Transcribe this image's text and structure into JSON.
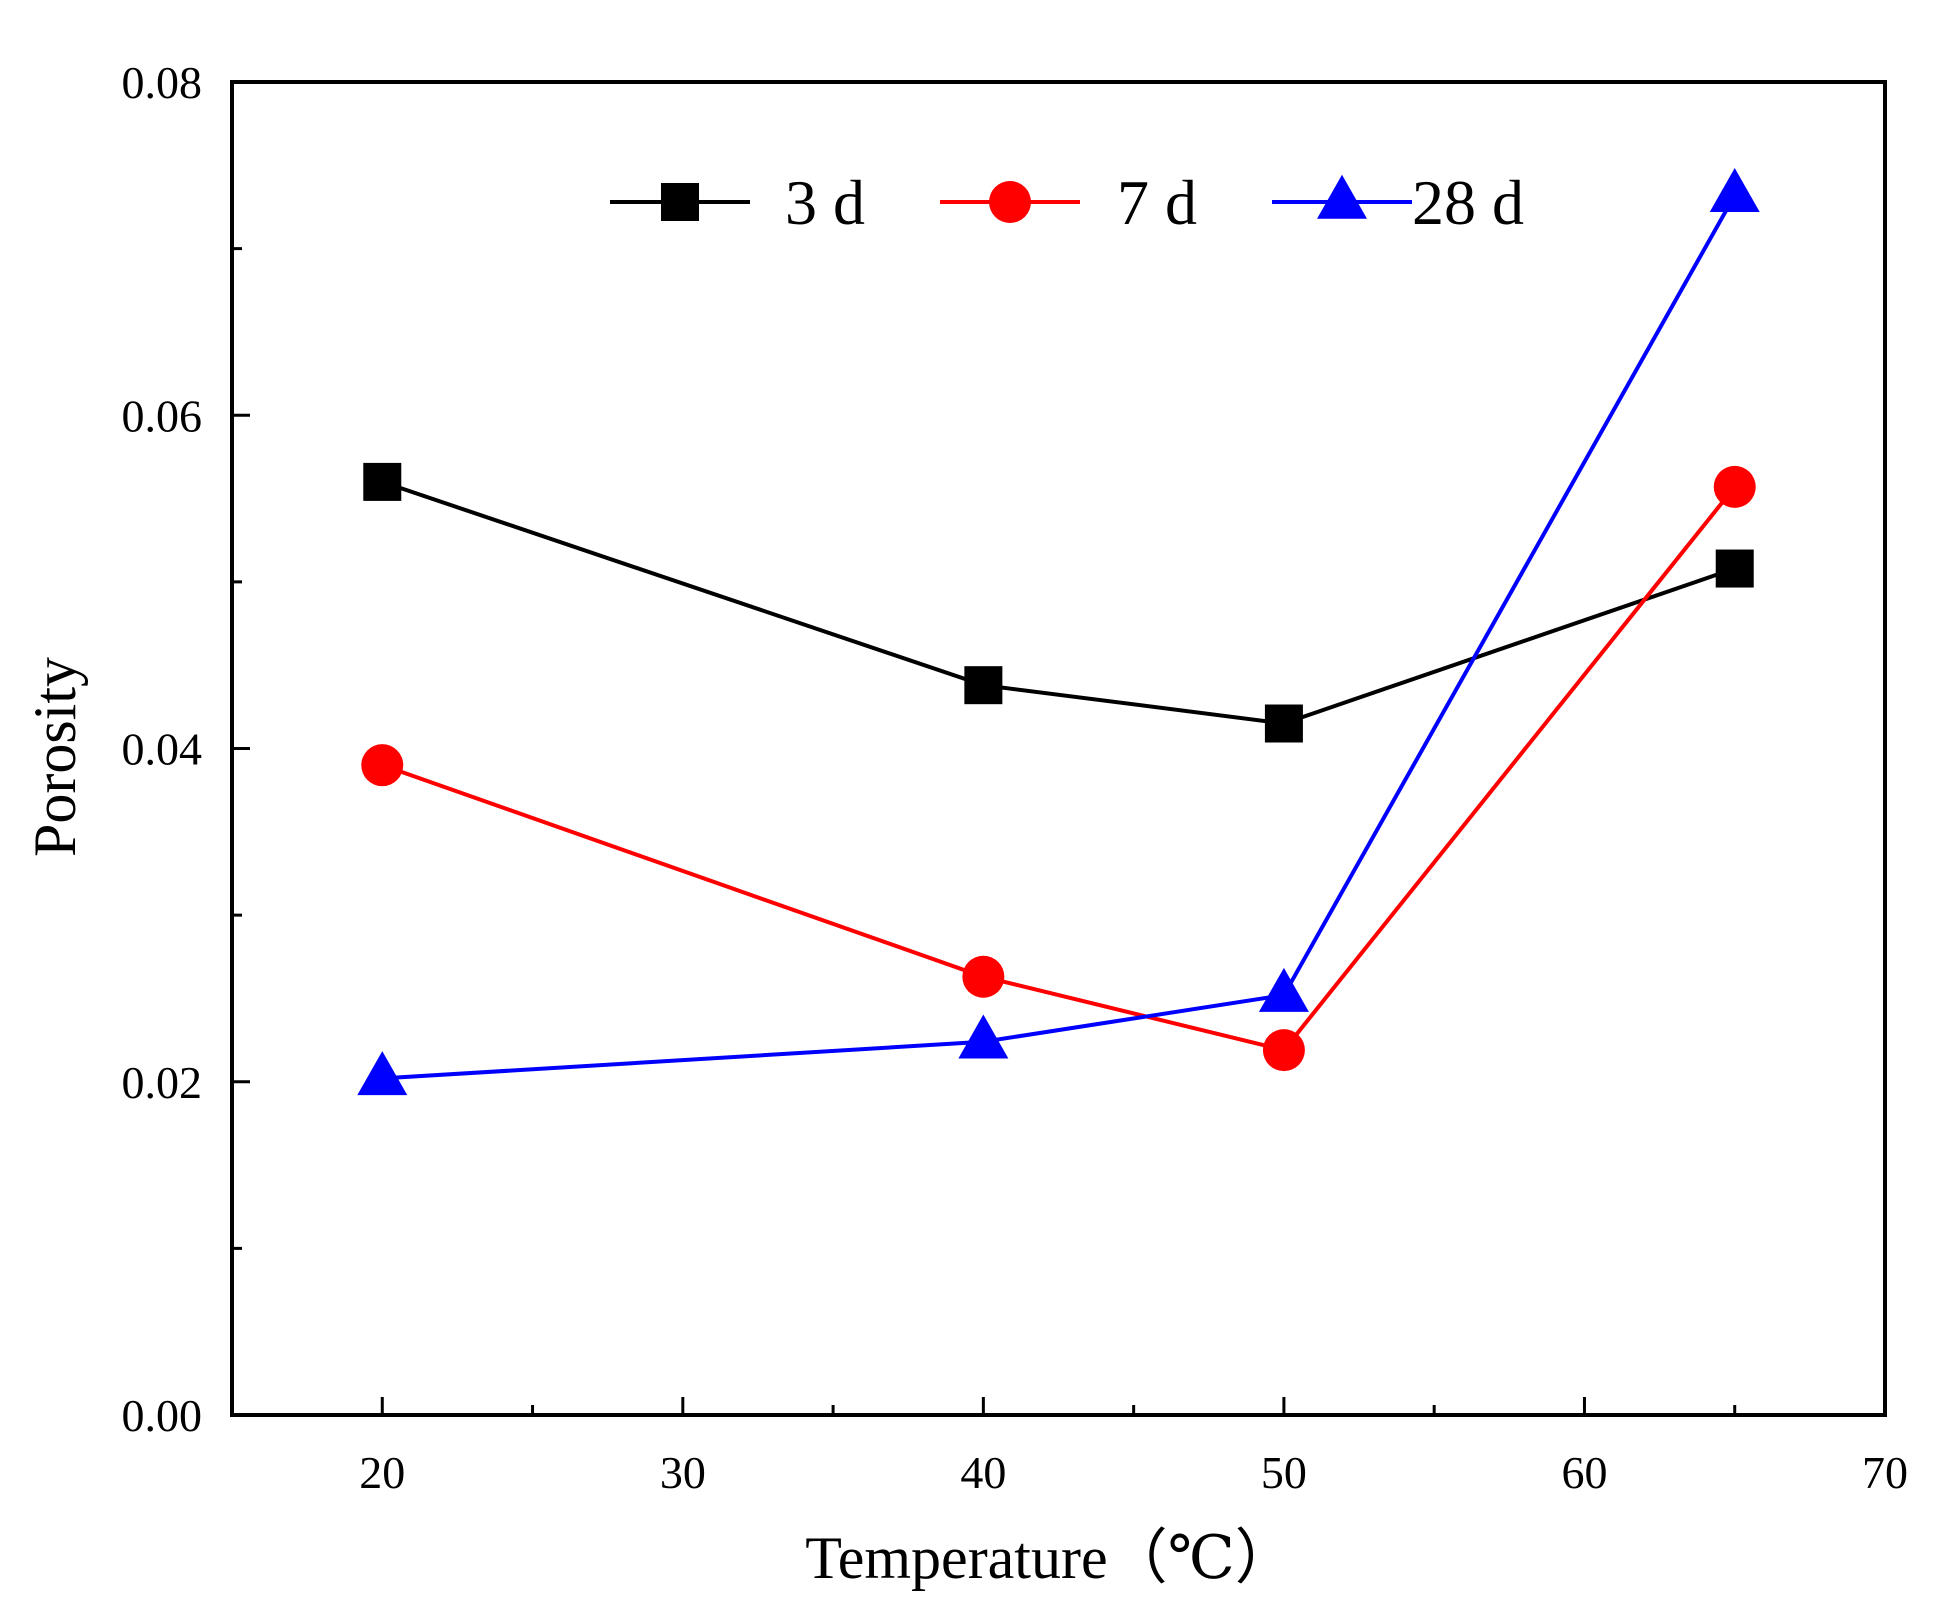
{
  "chart_data": {
    "type": "line",
    "title": "",
    "xlabel": "Temperature（℃）",
    "ylabel": "Porosity",
    "xlim": [
      15,
      70
    ],
    "ylim": [
      0.0,
      0.08
    ],
    "x_ticks": [
      20,
      30,
      40,
      50,
      60,
      70
    ],
    "x_tick_labels": [
      "20",
      "30",
      "40",
      "50",
      "60",
      "70"
    ],
    "x_minor_ticks": [
      25,
      35,
      45,
      55,
      65
    ],
    "y_ticks": [
      0.0,
      0.02,
      0.04,
      0.06,
      0.08
    ],
    "y_tick_labels": [
      "0.00",
      "0.02",
      "0.04",
      "0.06",
      "0.08"
    ],
    "y_minor_ticks": [
      0.01,
      0.03,
      0.05,
      0.07
    ],
    "grid": false,
    "legend_position": "top",
    "series": [
      {
        "name": "3 d",
        "color": "#000000",
        "marker": "square",
        "x": [
          20,
          40,
          50,
          65
        ],
        "values": [
          0.056,
          0.0438,
          0.0415,
          0.0508
        ]
      },
      {
        "name": "7 d",
        "color": "#ff0000",
        "marker": "circle",
        "x": [
          20,
          40,
          50,
          65
        ],
        "values": [
          0.039,
          0.0263,
          0.0219,
          0.0557
        ]
      },
      {
        "name": "28 d",
        "color": "#0000ff",
        "marker": "triangle",
        "x": [
          20,
          40,
          50,
          65
        ],
        "values": [
          0.0202,
          0.0224,
          0.0252,
          0.0732
        ]
      }
    ]
  }
}
